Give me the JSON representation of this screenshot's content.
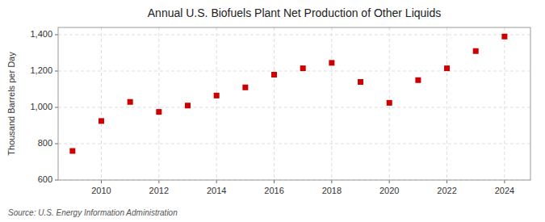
{
  "chart_data": {
    "type": "scatter",
    "title": "Annual U.S. Biofuels Plant Net Production of Other Liquids",
    "y_label": "Thousand Barrels per Day",
    "source": "Source: U.S. Energy Information Administration",
    "x": [
      2009,
      2010,
      2011,
      2012,
      2013,
      2014,
      2015,
      2016,
      2017,
      2018,
      2019,
      2020,
      2021,
      2022,
      2023,
      2024
    ],
    "values": [
      760,
      925,
      1030,
      975,
      1010,
      1065,
      1110,
      1180,
      1215,
      1245,
      1140,
      1025,
      1150,
      1215,
      1310,
      1390
    ],
    "color": "#cc0000",
    "marker": "square",
    "xlim": [
      2008.5,
      2024.9
    ],
    "xticks": [
      2010,
      2012,
      2014,
      2016,
      2018,
      2020,
      2022,
      2024
    ],
    "ylim": [
      600,
      1440
    ],
    "yticks": [
      600,
      800,
      {
        "value": 1000,
        "label": "1,000"
      },
      {
        "value": 1200,
        "label": "1,200"
      },
      {
        "value": 1400,
        "label": "1,400"
      }
    ],
    "grid": true
  }
}
